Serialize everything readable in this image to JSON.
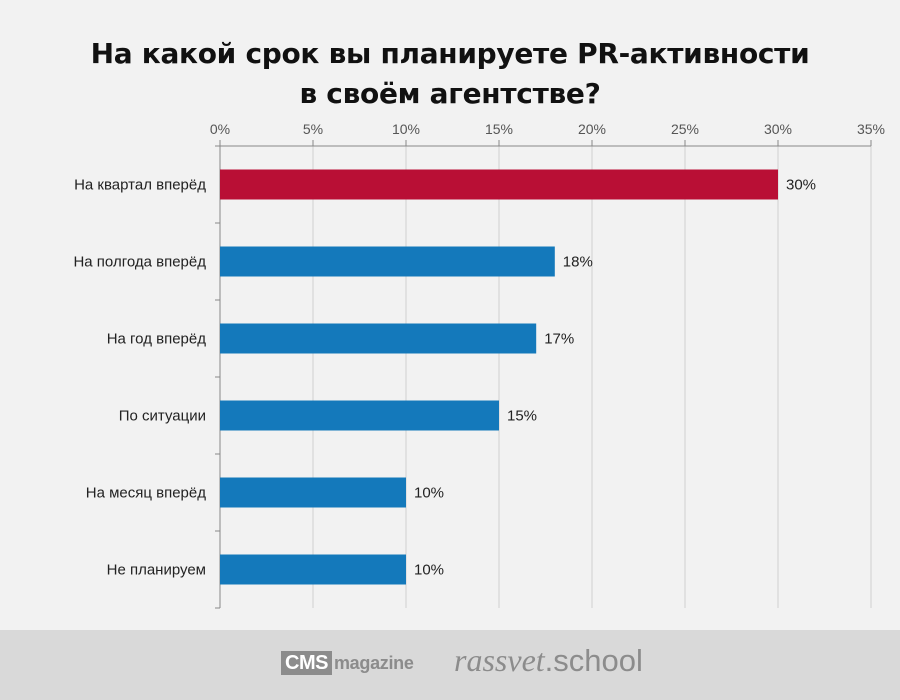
{
  "title_lines": [
    "На какой срок вы планируете PR-активности",
    "в своём агентстве?"
  ],
  "colors": {
    "highlight": "#b90f35",
    "bar": "#1479bb",
    "grid": "#d0d0d0",
    "axis": "#888888",
    "text": "#222222"
  },
  "chart_data": {
    "type": "bar",
    "orientation": "horizontal",
    "categories": [
      "На квартал вперёд",
      "На полгода вперёд",
      "На год вперёд",
      "По ситуации",
      "На месяц вперёд",
      "Не планируем"
    ],
    "values": [
      30,
      18,
      17,
      15,
      10,
      10
    ],
    "value_labels": [
      "30%",
      "18%",
      "17%",
      "15%",
      "10%",
      "10%"
    ],
    "highlight_index": 0,
    "xlim": [
      0,
      35
    ],
    "xticks": [
      0,
      5,
      10,
      15,
      20,
      25,
      30,
      35
    ],
    "xtick_labels": [
      "0%",
      "5%",
      "10%",
      "15%",
      "20%",
      "25%",
      "30%",
      "35%"
    ],
    "x_axis_position": "top",
    "grid": true
  },
  "footer": {
    "cms_logo_box": "CMS",
    "cms_logo_text": "magazine",
    "school_logo_name": "rassvet",
    "school_logo_suffix": ".school"
  }
}
